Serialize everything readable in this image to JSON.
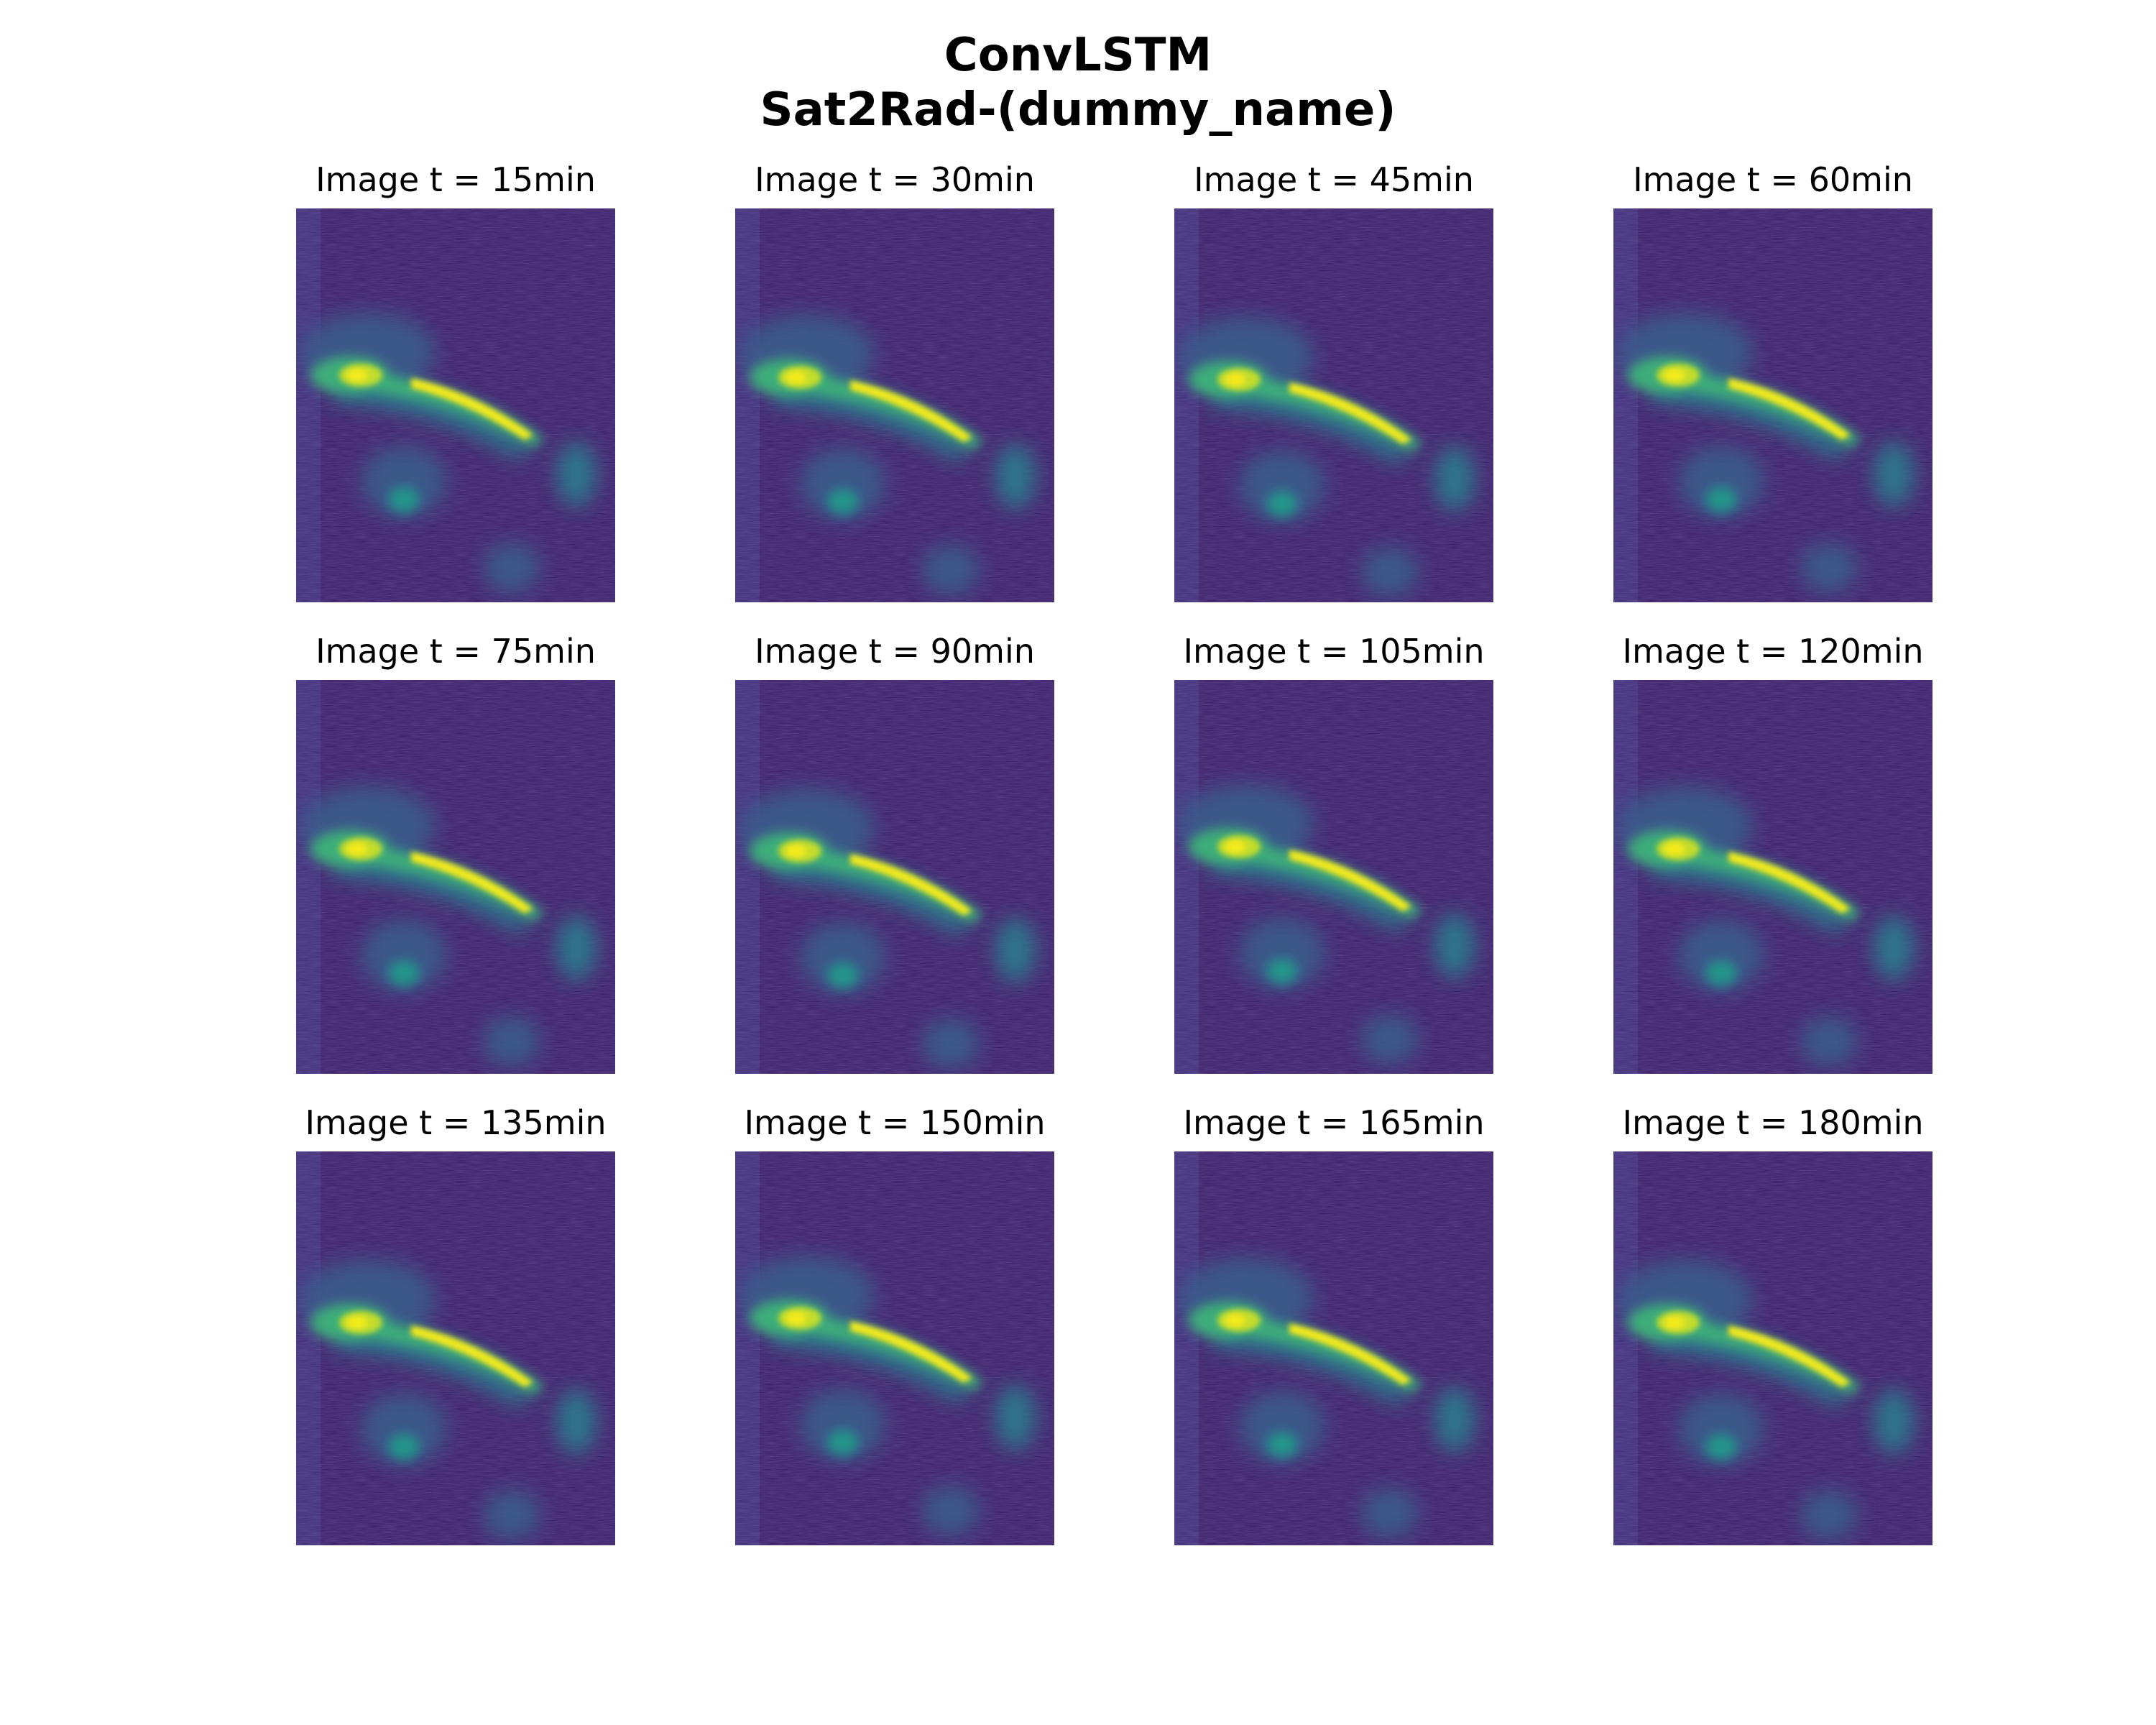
{
  "figure": {
    "title_line1": "ConvLSTM",
    "title_line2": "Sat2Rad-(dummy_name)"
  },
  "colormap": {
    "name": "viridis",
    "stops": [
      "#3b1c68",
      "#433a86",
      "#3b5c8c",
      "#2a7b8e",
      "#22958a",
      "#3dae79",
      "#7cc756",
      "#c3dc2a",
      "#f3ea1a"
    ]
  },
  "panels": [
    {
      "label": "Image t = 15min"
    },
    {
      "label": "Image t = 30min"
    },
    {
      "label": "Image t = 45min"
    },
    {
      "label": "Image t = 60min"
    },
    {
      "label": "Image t = 75min"
    },
    {
      "label": "Image t = 90min"
    },
    {
      "label": "Image t = 105min"
    },
    {
      "label": "Image t = 120min"
    },
    {
      "label": "Image t = 135min"
    },
    {
      "label": "Image t = 150min"
    },
    {
      "label": "Image t = 165min"
    },
    {
      "label": "Image t = 180min"
    }
  ]
}
